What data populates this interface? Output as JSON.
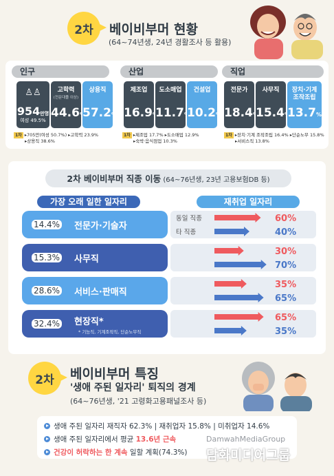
{
  "header": {
    "badge": "2차",
    "title": "베이비부머 현황",
    "subtitle": "(64~74년생, 24년 경활조사 등 활용)"
  },
  "panels": {
    "population": {
      "heading": "인구",
      "main_value": "954",
      "main_unit": "만명",
      "main_sub": "여성 49.5%",
      "stats": [
        {
          "label": "고학력",
          "sublabel": "(전문대졸 이상)",
          "value": "44.6",
          "unit": "%"
        },
        {
          "label": "상용직",
          "sublabel": "",
          "value": "57.2",
          "unit": "%"
        }
      ],
      "note_tag": "1차",
      "note_line1": "▸705만(여성 50.7%) ▸고학력 23.9%",
      "note_line2": "▸상용직 38.6%"
    },
    "industry": {
      "heading": "산업",
      "stats": [
        {
          "label": "제조업",
          "value": "16.9",
          "unit": "%"
        },
        {
          "label": "도소매업",
          "value": "11.7",
          "unit": "%"
        },
        {
          "label": "건설업",
          "value": "10.2",
          "unit": "%"
        }
      ],
      "note_tag": "1차",
      "note_line1": "▸제조업 17.7% ▸도소매업 12.9%",
      "note_line2": "▸숙박·음식점업 10.3%"
    },
    "occupation": {
      "heading": "직업",
      "stats": [
        {
          "label": "전문가",
          "value": "18.4",
          "unit": "%"
        },
        {
          "label": "사무직",
          "value": "15.4",
          "unit": "%"
        },
        {
          "label": "장치·기계 조작조립",
          "value": "13.7",
          "unit": "%"
        }
      ],
      "note_tag": "1차",
      "note_line1": "▸장치·기계 조작조립 16.4% ▸단순노무 15.8%",
      "note_line2": "▸서비스직 13.8%"
    }
  },
  "mobility": {
    "title_bold": "2차 베이비부머 직종 이동",
    "title_rest": " (64~76년생, 23년 고용보험DB 등)",
    "left_header": "가장 오래 일한 일자리",
    "right_header": "재취업 일자리",
    "same_label": "동일 직종",
    "other_label": "타 직종",
    "rows": [
      {
        "pct": "14.4%",
        "name": "전문가·기술자",
        "footnote": "",
        "same": "60%",
        "other": "40%"
      },
      {
        "pct": "15.3%",
        "name": "사무직",
        "footnote": "",
        "same": "30%",
        "other": "70%"
      },
      {
        "pct": "28.6%",
        "name": "서비스·판매직",
        "footnote": "",
        "same": "35%",
        "other": "65%"
      },
      {
        "pct": "32.4%",
        "name": "현장직*",
        "footnote": "* 기능직, 기계조작직, 단순노무직",
        "same": "65%",
        "other": "35%"
      }
    ]
  },
  "chart_data": {
    "type": "bar",
    "title": "2차 베이비부머 직종 이동",
    "categories": [
      "전문가·기술자",
      "사무직",
      "서비스·판매직",
      "현장직*"
    ],
    "longest_job_share": [
      14.4,
      15.3,
      28.6,
      32.4
    ],
    "series": [
      {
        "name": "동일 직종",
        "values": [
          60,
          30,
          35,
          65
        ]
      },
      {
        "name": "타 직종",
        "values": [
          40,
          70,
          65,
          35
        ]
      }
    ],
    "ylim": [
      0,
      100
    ]
  },
  "features": {
    "badge": "2차",
    "title": "베이비부머 특징",
    "title2": "'생애 주된 일자리' 퇴직의 경계",
    "subtitle": "(64~76년생, '21 고령화고용패널조사 등)",
    "bullets": [
      {
        "a": "생애 주된 일자리 재직자 62.3% | 재취업자 15.8% | 미취업자 14.6%",
        "b": "",
        "c": ""
      },
      {
        "a": "생애 주된 일자리에서 평균 ",
        "b": "13.6년 근속",
        "c": ""
      },
      {
        "a": "",
        "b": "건강이 허락하는 한 계속",
        "c": " 일할 계획(74.3%)"
      }
    ]
  },
  "watermark": {
    "en": "DamwahMediaGroup",
    "ko": "담화미디어그룹"
  },
  "colors": {
    "dark": "#3f4c57",
    "blue": "#58a9e6",
    "red": "#ef5a5e",
    "arrow_blue": "#4a78c8",
    "yellow": "#ffd642"
  }
}
